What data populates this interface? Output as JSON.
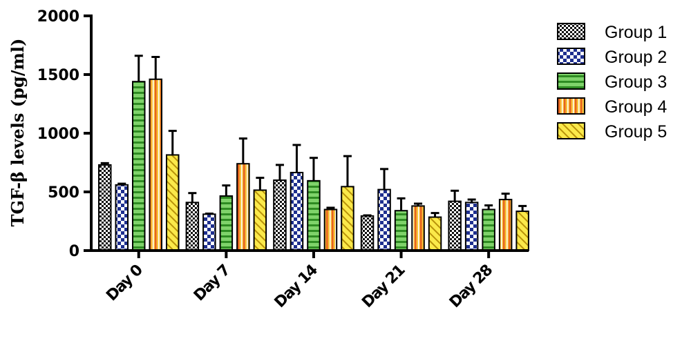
{
  "chart_data": {
    "type": "bar",
    "title": "",
    "xlabel": "",
    "ylabel": "TGF-β levels (pg/ml)",
    "ylim": [
      0,
      2000
    ],
    "yticks": [
      0,
      500,
      1000,
      1500,
      2000
    ],
    "yticklabels": [
      "0",
      "500",
      "1000",
      "1500",
      "2000"
    ],
    "categories": [
      "Day 0",
      "Day 7",
      "Day 14",
      "Day 21",
      "Day 28"
    ],
    "legend_position": "right",
    "grid": false,
    "error_bars": "upper",
    "series": [
      {
        "name": "Group 1",
        "pattern": "checker",
        "color": "#111111",
        "fill": "#ffffff",
        "values": [
          730,
          410,
          600,
          295,
          420
        ],
        "errors": [
          15,
          80,
          130,
          5,
          90
        ]
      },
      {
        "name": "Group 2",
        "pattern": "blue-check",
        "color": "#1e2f8f",
        "fill": "#ffffff",
        "values": [
          560,
          310,
          665,
          520,
          410
        ],
        "errors": [
          10,
          5,
          235,
          175,
          25
        ]
      },
      {
        "name": "Group 3",
        "pattern": "h-stripes",
        "color": "#2e8b22",
        "fill": "#7fd36a",
        "values": [
          1440,
          465,
          595,
          340,
          350
        ],
        "errors": [
          220,
          90,
          195,
          105,
          35
        ]
      },
      {
        "name": "Group 4",
        "pattern": "v-stripes",
        "color": "#d8541a",
        "fill": "#f7c23a",
        "values": [
          1460,
          740,
          350,
          380,
          435
        ],
        "errors": [
          190,
          215,
          15,
          20,
          50
        ]
      },
      {
        "name": "Group 5",
        "pattern": "diagonal",
        "color": "#c9a300",
        "fill": "#fbe94a",
        "values": [
          815,
          515,
          545,
          285,
          335
        ],
        "errors": [
          205,
          105,
          260,
          35,
          45
        ]
      }
    ]
  }
}
